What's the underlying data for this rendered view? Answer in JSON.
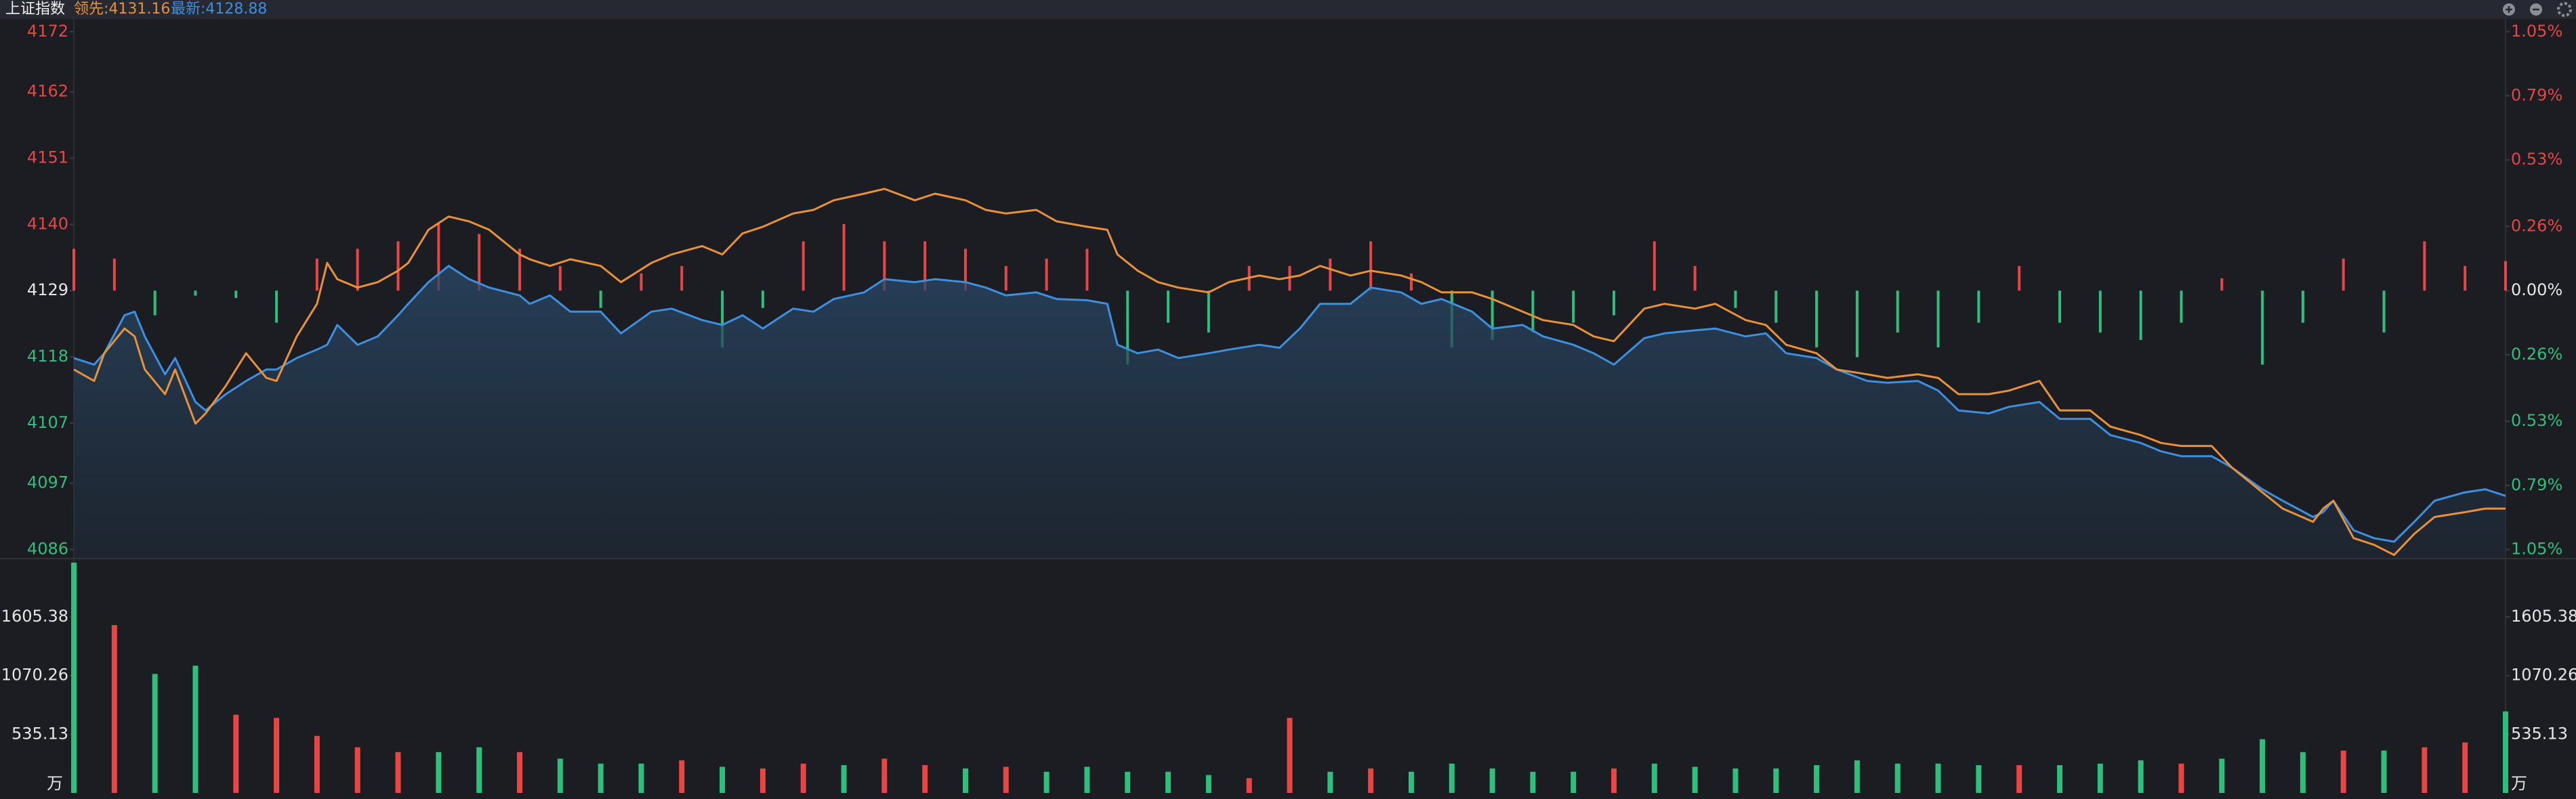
{
  "header": {
    "name": "上证指数",
    "lead": "领先:4131.16",
    "latest": "最新:4128.88"
  },
  "chart_data": [
    {
      "type": "line",
      "x": [
        0,
        2,
        3,
        5,
        6,
        7,
        9,
        10,
        12,
        13,
        15,
        17,
        19,
        20,
        22,
        24,
        25,
        26,
        28,
        30,
        32,
        33,
        35,
        37,
        39,
        41,
        44,
        45,
        47,
        49,
        52,
        54,
        57,
        59,
        62,
        64,
        66,
        68,
        71,
        73,
        75,
        78,
        80,
        83,
        85,
        88,
        90,
        92,
        95,
        97,
        100,
        102,
        103,
        105,
        107,
        109,
        112,
        114,
        117,
        119,
        121,
        123,
        126,
        128,
        131,
        133,
        135,
        138,
        140,
        143,
        145,
        148,
        150,
        152,
        155,
        157,
        160,
        162,
        165,
        167,
        169,
        172,
        174,
        177,
        179,
        182,
        184,
        186,
        189,
        191,
        194,
        196,
        199,
        201,
        204,
        206,
        208,
        211,
        213,
        216,
        218,
        221,
        222,
        223,
        225,
        227,
        229,
        231,
        233,
        236,
        238,
        240
      ],
      "xlim": [
        0,
        240
      ],
      "series": [
        {
          "color": "#3d8fe0",
          "area": true,
          "values": [
            4117.8,
            4116.7,
            4118.6,
            4124.9,
            4125.5,
            4121.4,
            4115.1,
            4117.8,
            4110.5,
            4109.1,
            4111.8,
            4114.0,
            4115.9,
            4115.9,
            4117.8,
            4119.2,
            4120.0,
            4123.3,
            4120.0,
            4121.4,
            4124.9,
            4126.8,
            4130.4,
            4133.1,
            4130.9,
            4129.5,
            4128.2,
            4126.8,
            4128.2,
            4125.5,
            4125.5,
            4121.9,
            4125.5,
            4126.0,
            4124.1,
            4123.3,
            4124.9,
            4122.7,
            4126.0,
            4125.5,
            4127.6,
            4128.7,
            4130.9,
            4130.4,
            4130.9,
            4130.4,
            4129.5,
            4128.2,
            4128.7,
            4127.6,
            4127.4,
            4126.8,
            4120.0,
            4118.6,
            4119.2,
            4117.8,
            4118.6,
            4119.2,
            4120.0,
            4119.5,
            4122.7,
            4126.8,
            4126.8,
            4129.5,
            4128.7,
            4126.8,
            4127.6,
            4125.5,
            4122.7,
            4123.3,
            4121.4,
            4120.0,
            4118.6,
            4116.7,
            4121.1,
            4121.9,
            4122.4,
            4122.7,
            4121.4,
            4121.9,
            4118.6,
            4117.8,
            4115.9,
            4114.0,
            4113.7,
            4114.0,
            4112.4,
            4109.1,
            4108.6,
            4109.7,
            4110.5,
            4107.7,
            4107.7,
            4105.0,
            4103.7,
            4102.3,
            4101.5,
            4101.5,
            4099.6,
            4096.0,
            4094.1,
            4091.4,
            4092.2,
            4094.1,
            4089.2,
            4087.9,
            4087.3,
            4090.6,
            4094.1,
            4095.5,
            4096.0,
            4094.9
          ]
        },
        {
          "color": "#e8913a",
          "area": false,
          "values": [
            4115.9,
            4114.0,
            4118.6,
            4122.7,
            4121.4,
            4115.9,
            4111.8,
            4115.9,
            4106.9,
            4108.6,
            4113.2,
            4118.6,
            4114.5,
            4114.0,
            4121.4,
            4126.8,
            4133.6,
            4130.9,
            4129.5,
            4130.4,
            4132.3,
            4133.6,
            4139.1,
            4141.3,
            4140.5,
            4139.1,
            4135.0,
            4134.2,
            4133.1,
            4134.2,
            4133.1,
            4130.4,
            4133.6,
            4135.0,
            4136.4,
            4135.0,
            4138.5,
            4139.6,
            4141.8,
            4142.4,
            4144.0,
            4145.1,
            4145.9,
            4144.0,
            4145.1,
            4144.0,
            4142.4,
            4141.8,
            4142.4,
            4140.5,
            4139.6,
            4139.1,
            4135.0,
            4132.3,
            4130.4,
            4129.5,
            4128.7,
            4130.4,
            4131.5,
            4130.9,
            4131.5,
            4133.1,
            4131.5,
            4132.3,
            4131.5,
            4130.4,
            4128.7,
            4128.7,
            4127.6,
            4125.5,
            4124.1,
            4123.3,
            4121.4,
            4120.6,
            4126.0,
            4126.8,
            4126.0,
            4126.8,
            4124.1,
            4123.3,
            4120.0,
            4118.6,
            4115.9,
            4115.1,
            4114.5,
            4115.1,
            4114.5,
            4111.8,
            4111.8,
            4112.4,
            4114.0,
            4109.1,
            4109.1,
            4106.4,
            4105.0,
            4103.7,
            4103.2,
            4103.2,
            4099.6,
            4095.5,
            4092.8,
            4090.6,
            4092.8,
            4094.1,
            4087.9,
            4086.8,
            4085.1,
            4088.6,
            4091.4,
            4092.2,
            4092.8,
            4092.8
          ]
        }
      ],
      "bars": {
        "axis": "y2",
        "x": [
          0,
          4,
          8,
          12,
          16,
          20,
          24,
          28,
          32,
          36,
          40,
          44,
          48,
          52,
          56,
          60,
          64,
          68,
          72,
          76,
          80,
          84,
          88,
          92,
          96,
          100,
          104,
          108,
          112,
          116,
          120,
          124,
          128,
          132,
          136,
          140,
          144,
          148,
          152,
          156,
          160,
          164,
          168,
          172,
          176,
          180,
          184,
          188,
          192,
          196,
          200,
          204,
          208,
          212,
          216,
          220,
          224,
          228,
          232,
          236,
          240
        ],
        "values": [
          0.17,
          0.13,
          -0.1,
          -0.02,
          -0.03,
          -0.13,
          0.13,
          0.17,
          0.2,
          0.27,
          0.23,
          0.17,
          0.1,
          -0.07,
          0.07,
          0.1,
          -0.23,
          -0.07,
          0.2,
          0.27,
          0.2,
          0.2,
          0.17,
          0.1,
          0.13,
          0.17,
          -0.3,
          -0.13,
          -0.17,
          0.1,
          0.1,
          0.13,
          0.2,
          0.07,
          -0.23,
          -0.2,
          -0.17,
          -0.13,
          -0.1,
          0.2,
          0.1,
          -0.07,
          -0.13,
          -0.23,
          -0.27,
          -0.17,
          -0.23,
          -0.13,
          0.1,
          -0.13,
          -0.17,
          -0.2,
          -0.13,
          0.05,
          -0.3,
          -0.13,
          0.13,
          -0.17,
          0.2,
          0.1,
          0.12
        ]
      },
      "ylim": [
        4084.6,
        4174
      ],
      "yticks": [
        4086,
        4097,
        4107,
        4118,
        4129,
        4140,
        4151,
        4162,
        4172
      ],
      "y2lim": [
        -1.084,
        1.099
      ],
      "y2ticks": [
        {
          "value": -1.05,
          "label": "1.05%"
        },
        {
          "value": -0.79,
          "label": "0.79%"
        },
        {
          "value": -0.53,
          "label": "0.53%"
        },
        {
          "value": -0.26,
          "label": "0.26%"
        },
        {
          "value": 0,
          "label": "0.00%"
        },
        {
          "value": 0.26,
          "label": "0.26%"
        },
        {
          "value": 0.53,
          "label": "0.53%"
        },
        {
          "value": 0.79,
          "label": "0.79%"
        },
        {
          "value": 1.05,
          "label": "1.05%"
        }
      ],
      "up_color": "#e84545",
      "down_color": "#2fbf7a",
      "flat_color": "#e6e6e6"
    },
    {
      "type": "bar",
      "x": [
        0,
        4,
        8,
        12,
        16,
        20,
        24,
        28,
        32,
        36,
        40,
        44,
        48,
        52,
        56,
        60,
        64,
        68,
        72,
        76,
        80,
        84,
        88,
        92,
        96,
        100,
        104,
        108,
        112,
        116,
        120,
        124,
        128,
        132,
        136,
        140,
        144,
        148,
        152,
        156,
        160,
        164,
        168,
        172,
        176,
        180,
        184,
        188,
        192,
        196,
        200,
        204,
        208,
        212,
        216,
        220,
        224,
        228,
        232,
        236,
        240
      ],
      "xlim": [
        0,
        240
      ],
      "values": [
        2100,
        1530,
        1085,
        1160,
        713,
        684,
        520,
        416,
        372,
        372,
        416,
        372,
        312,
        267,
        267,
        297,
        238,
        223,
        267,
        253,
        312,
        253,
        223,
        238,
        193,
        238,
        193,
        193,
        163,
        134,
        684,
        193,
        223,
        193,
        267,
        223,
        193,
        193,
        223,
        267,
        238,
        223,
        223,
        253,
        297,
        267,
        267,
        253,
        253,
        253,
        267,
        297,
        267,
        312,
        490,
        372,
        386,
        386,
        416,
        460,
        743
      ],
      "colors": [
        "#2fbf7a",
        "#e84545",
        "#2fbf7a",
        "#2fbf7a",
        "#e84545",
        "#e84545",
        "#e84545",
        "#e84545",
        "#e84545",
        "#2fbf7a",
        "#2fbf7a",
        "#e84545",
        "#2fbf7a",
        "#2fbf7a",
        "#2fbf7a",
        "#e84545",
        "#2fbf7a",
        "#e84545",
        "#e84545",
        "#2fbf7a",
        "#e84545",
        "#e84545",
        "#2fbf7a",
        "#e84545",
        "#2fbf7a",
        "#2fbf7a",
        "#2fbf7a",
        "#2fbf7a",
        "#2fbf7a",
        "#e84545",
        "#e84545",
        "#2fbf7a",
        "#e84545",
        "#2fbf7a",
        "#2fbf7a",
        "#2fbf7a",
        "#2fbf7a",
        "#2fbf7a",
        "#e84545",
        "#2fbf7a",
        "#2fbf7a",
        "#2fbf7a",
        "#2fbf7a",
        "#2fbf7a",
        "#2fbf7a",
        "#2fbf7a",
        "#2fbf7a",
        "#2fbf7a",
        "#e84545",
        "#2fbf7a",
        "#2fbf7a",
        "#2fbf7a",
        "#e84545",
        "#2fbf7a",
        "#2fbf7a",
        "#2fbf7a",
        "#e84545",
        "#2fbf7a",
        "#e84545",
        "#e84545",
        "#2fbf7a"
      ],
      "ylim": [
        0,
        2130
      ],
      "yticks": [
        535.13,
        1070.26,
        1605.38
      ],
      "unit": "万"
    }
  ]
}
